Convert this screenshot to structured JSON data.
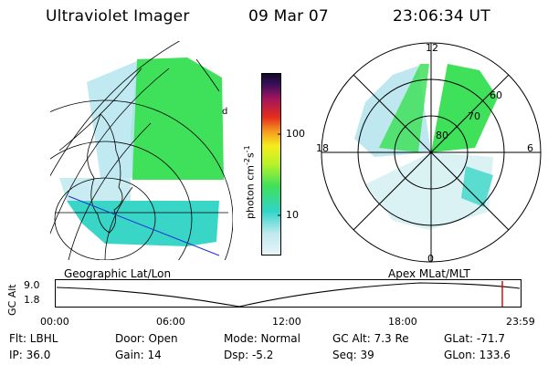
{
  "header": {
    "title": "Ultraviolet Imager",
    "date": "09 Mar 07",
    "time": "23:06:34 UT"
  },
  "geographic": {
    "edge_label": "d"
  },
  "colorbar": {
    "ticks": [
      "100",
      "10"
    ],
    "units_base": "photon cm",
    "units_exp1": "-2",
    "units_mid": "s",
    "units_exp2": "-1",
    "colors": [
      "#e8f4f7",
      "#31d4c9",
      "#3fe05a",
      "#f6ec1c",
      "#e52c1b",
      "#100a28"
    ]
  },
  "polar": {
    "mlt_labels": [
      "12",
      "18",
      "6",
      "0"
    ],
    "lat_labels": [
      "60",
      "70",
      "80"
    ]
  },
  "timeline": {
    "left_label": "Geographic Lat/Lon",
    "right_label": "Apex MLat/MLT",
    "y_label": "GC Alt",
    "y_ticks": [
      "9.0",
      "1.8"
    ],
    "x_ticks": [
      "00:00",
      "06:00",
      "12:00",
      "18:00",
      "23:59"
    ],
    "marker_color": "#d00000"
  },
  "status": {
    "row1": [
      "Flt: LBHL",
      "Door: Open",
      "Mode: Normal",
      "GC Alt: 7.3 Re",
      "GLat: -71.7"
    ],
    "row2": [
      "IP: 36.0",
      "Gain: 14",
      "Dsp:    -5.2",
      "Seq: 39",
      "GLon: 133.6"
    ]
  }
}
